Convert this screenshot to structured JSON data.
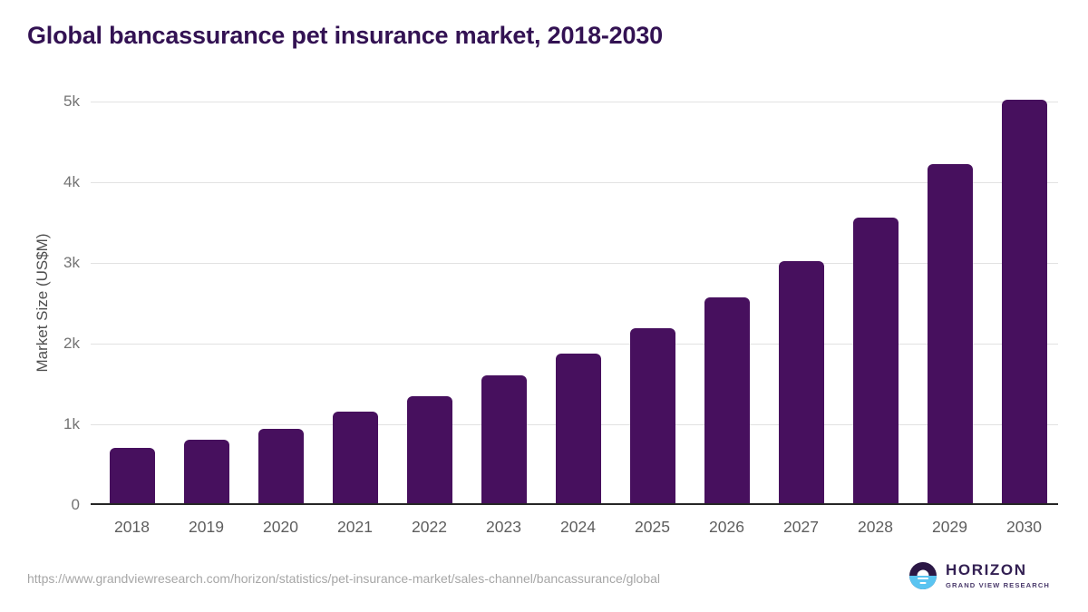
{
  "page": {
    "title": "Global bancassurance pet insurance market, 2018-2030",
    "source_url": "https://www.grandviewresearch.com/horizon/statistics/pet-insurance-market/sales-channel/bancassurance/global"
  },
  "branding": {
    "logo_title": "HORIZON",
    "logo_subtitle": "GRAND VIEW RESEARCH"
  },
  "colors": {
    "bar": "#47105e",
    "title_text": "#331253",
    "gridline": "#e2e2e2",
    "axis_line": "#262626",
    "tick_text": "#737373",
    "logo_purple": "#2b1745",
    "logo_blue": "#5ac4f1"
  },
  "chart_data": {
    "type": "bar",
    "title": "Global bancassurance pet insurance market, 2018-2030",
    "categories": [
      "2018",
      "2019",
      "2020",
      "2021",
      "2022",
      "2023",
      "2024",
      "2025",
      "2026",
      "2027",
      "2028",
      "2029",
      "2030"
    ],
    "values": [
      690,
      790,
      920,
      1130,
      1330,
      1580,
      1850,
      2170,
      2550,
      3000,
      3540,
      4200,
      5000
    ],
    "xlabel": "",
    "ylabel": "Market Size (US$M)",
    "ylim": [
      0,
      5000
    ],
    "yticks": [
      {
        "value": 0,
        "label": "0"
      },
      {
        "value": 1000,
        "label": "1k"
      },
      {
        "value": 2000,
        "label": "2k"
      },
      {
        "value": 3000,
        "label": "3k"
      },
      {
        "value": 4000,
        "label": "4k"
      },
      {
        "value": 5000,
        "label": "5k"
      }
    ],
    "grid": true,
    "legend": false,
    "bar_color": "#47105e"
  }
}
